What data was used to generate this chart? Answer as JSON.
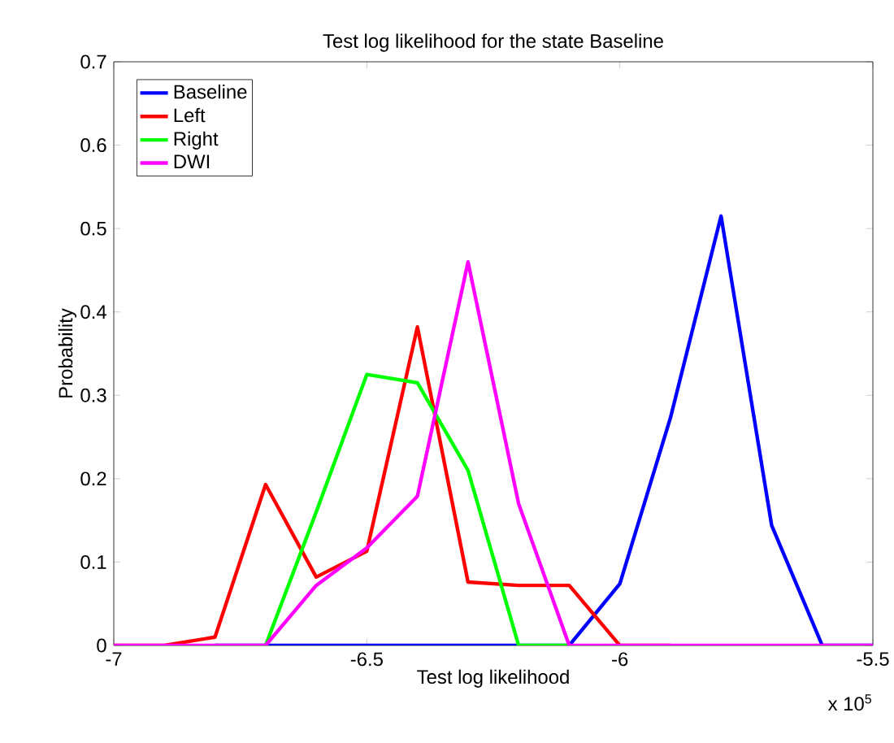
{
  "chart_data": {
    "type": "line",
    "title": "Test log likelihood for the state Baseline",
    "xlabel": "Test log likelihood",
    "ylabel": "Probability",
    "annotations": [
      "x 10$^{5}$"
    ],
    "x": [
      -7,
      -6.9,
      -6.8,
      -6.7,
      -6.6,
      -6.5,
      -6.4,
      -6.3,
      -6.2,
      -6.1,
      -6.0,
      -5.9,
      -5.8,
      -5.7,
      -5.6,
      -5.5
    ],
    "series": [
      {
        "name": "Baseline",
        "color": "#0000ff",
        "values": [
          null,
          null,
          0,
          0,
          0,
          0,
          0,
          0,
          0,
          0,
          0.074,
          0.273,
          0.515,
          0.144,
          0,
          0
        ]
      },
      {
        "name": "Left",
        "color": "#ff0000",
        "values": [
          0,
          0,
          0.01,
          0.193,
          0.082,
          0.113,
          0.382,
          0.076,
          0.072,
          0.072,
          0,
          0,
          null,
          null,
          null,
          null
        ]
      },
      {
        "name": "Right",
        "color": "#00ff00",
        "values": [
          null,
          null,
          null,
          0,
          0.16,
          0.325,
          0.315,
          0.21,
          0,
          0,
          null,
          null,
          null,
          null,
          null,
          null
        ]
      },
      {
        "name": "DWI",
        "color": "#ff00ff",
        "values": [
          0,
          0,
          0,
          0,
          0.072,
          0.117,
          0.179,
          0.46,
          0.17,
          0,
          0,
          0,
          0,
          0,
          0,
          0
        ]
      }
    ],
    "xlim": [
      -7,
      -5.5
    ],
    "ylim": [
      0,
      0.7
    ],
    "xticks": [
      -7,
      -6.5,
      -6,
      -5.5
    ],
    "yticks": [
      0,
      0.1,
      0.2,
      0.3,
      0.4,
      0.5,
      0.6,
      0.7
    ],
    "grid": false,
    "legend": "top left",
    "marker": "none",
    "line_style": "solid"
  }
}
